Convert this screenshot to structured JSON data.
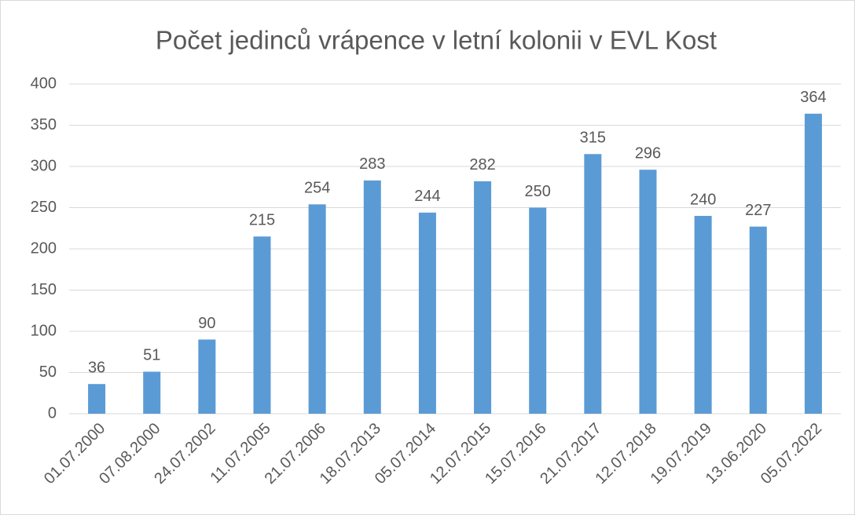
{
  "chart_data": {
    "type": "bar",
    "title": "Počet jedinců vrápence v letní kolonii v EVL Kost",
    "categories": [
      "01.07.2000",
      "07.08.2000",
      "24.07.2002",
      "11.07.2005",
      "21.07.2006",
      "18.07.2013",
      "05.07.2014",
      "12.07.2015",
      "15.07.2016",
      "21.07.2017",
      "12.07.2018",
      "19.07.2019",
      "13.06.2020",
      "05.07.2022"
    ],
    "values": [
      36,
      51,
      90,
      215,
      254,
      283,
      244,
      282,
      250,
      315,
      296,
      240,
      227,
      364
    ],
    "color": "#5b9bd5",
    "ylim": [
      0,
      400
    ],
    "yticks": [
      0,
      50,
      100,
      150,
      200,
      250,
      300,
      350,
      400
    ],
    "grid": true,
    "data_labels": true
  }
}
